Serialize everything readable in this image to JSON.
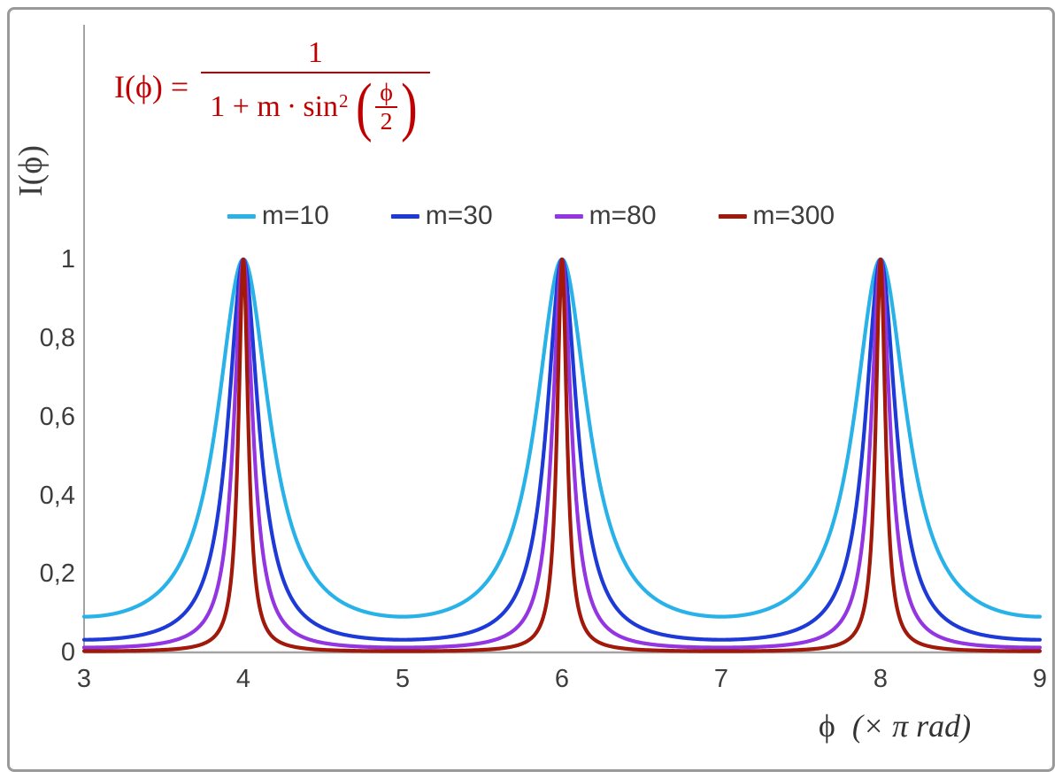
{
  "chart_data": {
    "type": "line",
    "function": "I(phi) = 1 / (1 + m * sin^2(phi/2))",
    "x_unit": "pi rad",
    "x_range": [
      3,
      9
    ],
    "y_range": [
      0,
      1
    ],
    "x_ticks": [
      "3",
      "4",
      "5",
      "6",
      "7",
      "8",
      "9"
    ],
    "y_ticks": [
      "1",
      "0,8",
      "0,6",
      "0,4",
      "0,2",
      "0"
    ],
    "y_axis_label": "I(ϕ)",
    "x_axis_label_phi": "ϕ",
    "x_axis_label_unit": "(× π rad)",
    "legend_position": "top",
    "peaks_at_x": [
      4,
      6,
      8
    ],
    "series": [
      {
        "name": "m=10",
        "m": 10,
        "color": "#29b2e8"
      },
      {
        "name": "m=30",
        "m": 30,
        "color": "#1e3ad6"
      },
      {
        "name": "m=80",
        "m": 80,
        "color": "#9435e2"
      },
      {
        "name": "m=300",
        "m": 300,
        "color": "#a0190a"
      }
    ]
  },
  "formula": {
    "lhs": "I(ϕ) =",
    "numerator": "1",
    "den_prefix": "1 + m ∙ sin",
    "den_sup": "2",
    "inner_numerator": "ϕ",
    "inner_denominator": "2",
    "color": "#c00000"
  },
  "colors": {
    "frame_border": "#9a9a9a",
    "axis_line": "#a3a3a3",
    "tick_text": "#3d3d3d"
  }
}
